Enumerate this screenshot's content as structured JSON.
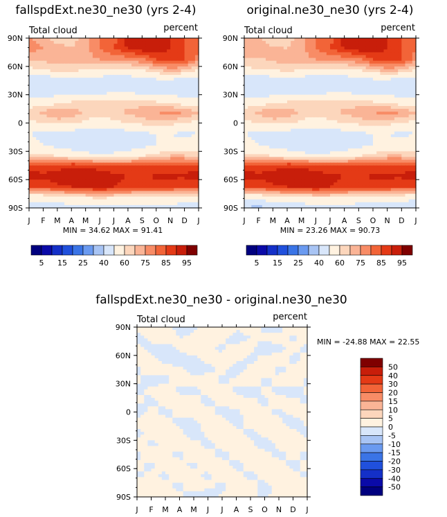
{
  "chart_data": {
    "type": "heatmap",
    "x_ticks": [
      "J",
      "F",
      "M",
      "A",
      "M",
      "J",
      "J",
      "A",
      "S",
      "O",
      "N",
      "D",
      "J"
    ],
    "y_ticks": [
      "90N",
      "60N",
      "30N",
      "0",
      "30S",
      "60S",
      "90S"
    ],
    "panels": [
      {
        "title": "fallspdExt.ne30_ne30 (yrs 2-4)",
        "left_label": "Total cloud",
        "right_label": "percent",
        "stats": "MIN =  34.62 MAX =  91.41",
        "levels": [
          5,
          10,
          15,
          20,
          25,
          30,
          40,
          50,
          60,
          65,
          70,
          75,
          80,
          85,
          90,
          95
        ],
        "z": [
          [
            70,
            68,
            62,
            62,
            68,
            75,
            78,
            88,
            90,
            90,
            85,
            80,
            78
          ],
          [
            72,
            70,
            68,
            65,
            68,
            75,
            80,
            85,
            88,
            88,
            85,
            80,
            78
          ],
          [
            65,
            66,
            68,
            68,
            68,
            70,
            72,
            72,
            74,
            80,
            82,
            80,
            72
          ],
          [
            58,
            60,
            62,
            62,
            60,
            60,
            58,
            58,
            60,
            65,
            68,
            66,
            60
          ],
          [
            40,
            42,
            44,
            45,
            44,
            44,
            42,
            44,
            46,
            48,
            48,
            46,
            44
          ],
          [
            42,
            40,
            45,
            44,
            44,
            46,
            48,
            48,
            46,
            45,
            44,
            44,
            42
          ],
          [
            55,
            55,
            58,
            60,
            60,
            60,
            62,
            62,
            62,
            60,
            58,
            56,
            55
          ],
          [
            64,
            66,
            70,
            68,
            65,
            62,
            64,
            66,
            68,
            70,
            72,
            70,
            65
          ],
          [
            58,
            60,
            62,
            62,
            58,
            56,
            58,
            60,
            62,
            64,
            62,
            60,
            58
          ],
          [
            50,
            48,
            46,
            45,
            44,
            44,
            44,
            46,
            48,
            50,
            50,
            48,
            50
          ],
          [
            52,
            50,
            46,
            44,
            44,
            42,
            42,
            44,
            46,
            50,
            52,
            54,
            54
          ],
          [
            62,
            60,
            58,
            55,
            52,
            50,
            52,
            54,
            58,
            62,
            64,
            64,
            62
          ],
          [
            82,
            82,
            82,
            84,
            84,
            82,
            80,
            80,
            80,
            82,
            82,
            82,
            82
          ],
          [
            88,
            86,
            88,
            90,
            88,
            89,
            86,
            85,
            84,
            86,
            86,
            86,
            88
          ],
          [
            80,
            80,
            84,
            85,
            86,
            88,
            85,
            84,
            82,
            82,
            82,
            80,
            80
          ],
          [
            55,
            55,
            56,
            58,
            60,
            62,
            60,
            58,
            58,
            58,
            58,
            56,
            55
          ],
          [
            44,
            42,
            44,
            46,
            46,
            48,
            48,
            48,
            46,
            46,
            46,
            44,
            44
          ]
        ]
      },
      {
        "title": "original.ne30_ne30 (yrs 2-4)",
        "left_label": "Total cloud",
        "right_label": "percent",
        "stats": "MIN =  23.26 MAX =  90.73",
        "levels": [
          5,
          10,
          15,
          20,
          25,
          30,
          40,
          50,
          60,
          65,
          70,
          75,
          80,
          85,
          90,
          95
        ],
        "z": [
          [
            68,
            66,
            60,
            62,
            68,
            75,
            78,
            88,
            90,
            90,
            85,
            80,
            76
          ],
          [
            70,
            70,
            66,
            65,
            68,
            75,
            80,
            85,
            88,
            88,
            85,
            80,
            76
          ],
          [
            64,
            64,
            66,
            68,
            68,
            70,
            72,
            72,
            74,
            80,
            82,
            80,
            72
          ],
          [
            58,
            60,
            60,
            62,
            60,
            60,
            58,
            58,
            60,
            64,
            68,
            66,
            60
          ],
          [
            40,
            42,
            44,
            45,
            44,
            42,
            42,
            44,
            46,
            48,
            48,
            46,
            44
          ],
          [
            42,
            40,
            45,
            44,
            44,
            44,
            48,
            48,
            46,
            45,
            44,
            44,
            42
          ],
          [
            54,
            56,
            58,
            60,
            60,
            60,
            62,
            62,
            62,
            60,
            58,
            56,
            55
          ],
          [
            64,
            66,
            70,
            68,
            65,
            62,
            64,
            66,
            68,
            70,
            72,
            70,
            65
          ],
          [
            58,
            60,
            62,
            62,
            58,
            56,
            58,
            60,
            62,
            64,
            62,
            60,
            58
          ],
          [
            50,
            48,
            46,
            45,
            44,
            44,
            44,
            46,
            48,
            50,
            50,
            48,
            50
          ],
          [
            52,
            50,
            46,
            44,
            44,
            42,
            42,
            44,
            46,
            50,
            52,
            54,
            54
          ],
          [
            62,
            60,
            58,
            55,
            52,
            50,
            52,
            54,
            58,
            62,
            64,
            64,
            62
          ],
          [
            82,
            82,
            82,
            84,
            84,
            82,
            80,
            80,
            80,
            82,
            82,
            82,
            82
          ],
          [
            88,
            86,
            88,
            90,
            88,
            88,
            86,
            85,
            84,
            86,
            86,
            86,
            88
          ],
          [
            80,
            80,
            84,
            85,
            86,
            88,
            85,
            84,
            82,
            82,
            82,
            80,
            80
          ],
          [
            52,
            54,
            56,
            58,
            58,
            60,
            60,
            58,
            58,
            58,
            58,
            56,
            52
          ],
          [
            40,
            36,
            42,
            44,
            44,
            46,
            46,
            46,
            44,
            44,
            44,
            42,
            40
          ]
        ]
      },
      {
        "title": "fallspdExt.ne30_ne30 - original.ne30_ne30",
        "left_label": "Total cloud",
        "right_label": "percent",
        "stats": "MIN = -24.88 MAX =  22.55",
        "levels": [
          -50,
          -40,
          -30,
          -20,
          -15,
          -10,
          -5,
          0,
          5,
          10,
          15,
          20,
          30,
          40,
          50
        ],
        "z": [
          [
            3,
            4,
            2,
            -2,
            -1,
            2,
            4,
            1,
            2,
            -1,
            -3,
            5,
            1
          ],
          [
            -2,
            1,
            2,
            0,
            1,
            2,
            1,
            -2,
            0,
            1,
            2,
            -1,
            2
          ],
          [
            1,
            -1,
            -2,
            1,
            2,
            1,
            -1,
            2,
            1,
            -2,
            -1,
            1,
            -1
          ],
          [
            2,
            1,
            -1,
            -2,
            -1,
            1,
            2,
            1,
            -1,
            1,
            2,
            -1,
            1
          ],
          [
            -1,
            2,
            1,
            1,
            -2,
            -1,
            1,
            -2,
            1,
            2,
            -1,
            1,
            2
          ],
          [
            1,
            -2,
            -1,
            2,
            1,
            2,
            -1,
            1,
            2,
            -1,
            1,
            2,
            -1
          ],
          [
            -1,
            1,
            2,
            -1,
            -1,
            1,
            2,
            -1,
            -2,
            1,
            -1,
            -2,
            1
          ],
          [
            1,
            -1,
            1,
            2,
            1,
            -1,
            1,
            2,
            1,
            -1,
            2,
            1,
            -1
          ],
          [
            -2,
            1,
            -1,
            1,
            2,
            1,
            -1,
            -1,
            2,
            1,
            -1,
            1,
            2
          ],
          [
            1,
            2,
            1,
            -1,
            -1,
            2,
            1,
            -1,
            1,
            2,
            1,
            -2,
            1
          ],
          [
            -1,
            1,
            2,
            1,
            -2,
            1,
            2,
            1,
            -1,
            1,
            2,
            1,
            -1
          ],
          [
            2,
            -1,
            1,
            2,
            1,
            -1,
            1,
            2,
            1,
            -2,
            1,
            2,
            1
          ],
          [
            -1,
            2,
            1,
            -1,
            2,
            1,
            -1,
            1,
            2,
            1,
            -1,
            1,
            -1
          ],
          [
            1,
            -1,
            2,
            1,
            -1,
            2,
            1,
            -1,
            1,
            2,
            1,
            -1,
            1
          ],
          [
            -1,
            1,
            -1,
            2,
            1,
            -1,
            2,
            1,
            -1,
            1,
            2,
            1,
            -1
          ],
          [
            2,
            4,
            1,
            -1,
            2,
            1,
            -1,
            2,
            1,
            -1,
            1,
            2,
            3
          ],
          [
            3,
            5,
            2,
            1,
            -2,
            -3,
            1,
            2,
            1,
            -1,
            2,
            1,
            3
          ]
        ]
      }
    ],
    "colorbars": [
      {
        "labels": [
          "5",
          "15",
          "25",
          "40",
          "60",
          "75",
          "85",
          "95"
        ]
      },
      {
        "labels": [
          "5",
          "15",
          "25",
          "40",
          "60",
          "75",
          "85",
          "95"
        ]
      },
      {
        "labels": [
          "50",
          "40",
          "30",
          "20",
          "15",
          "10",
          "5",
          "0",
          "-5",
          "-10",
          "-15",
          "-20",
          "-30",
          "-40",
          "-50"
        ]
      }
    ],
    "colors": {
      "abs": [
        "#00007f",
        "#0a0aa8",
        "#1430c8",
        "#2050dc",
        "#3a74e6",
        "#6a9af0",
        "#a8c4f4",
        "#d8e6fa",
        "#fff2e0",
        "#fcd6bc",
        "#fab496",
        "#f88c66",
        "#f26438",
        "#e43a16",
        "#c81e0a",
        "#7f0000"
      ],
      "diff": [
        "#00007f",
        "#0a0aa8",
        "#1430c8",
        "#2050dc",
        "#3a74e6",
        "#6a9af0",
        "#a8c4f4",
        "#d8e6fa",
        "#fff2e0",
        "#fcd6bc",
        "#fab496",
        "#f88c66",
        "#f26438",
        "#e43a16",
        "#c81e0a",
        "#7f0000"
      ]
    }
  }
}
